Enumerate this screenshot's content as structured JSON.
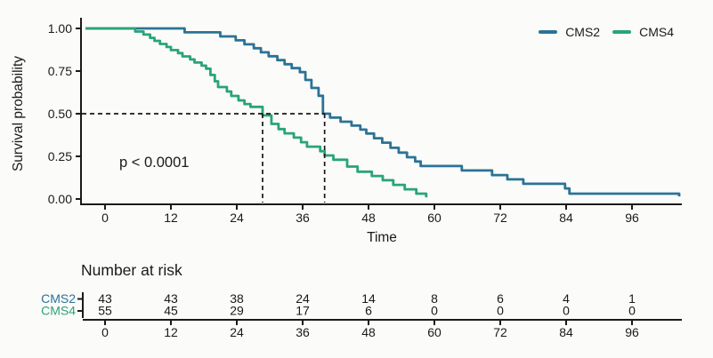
{
  "figure": {
    "background": "#fbfbf9",
    "text_color": "#1a1a1a"
  },
  "chart_data": {
    "type": "line",
    "subtype": "kaplan-meier-step",
    "title": "",
    "xlabel": "Time",
    "ylabel": "Survival probability",
    "grid": false,
    "xlim": [
      -4,
      105
    ],
    "ylim": [
      0,
      1
    ],
    "x_ticks": [
      0,
      12,
      24,
      36,
      48,
      60,
      72,
      84,
      96
    ],
    "y_ticks": [
      {
        "value": 0.0,
        "label": "0.00"
      },
      {
        "value": 0.25,
        "label": "0.25"
      },
      {
        "value": 0.5,
        "label": "0.50"
      },
      {
        "value": 0.75,
        "label": "0.75"
      },
      {
        "value": 1.0,
        "label": "1.00"
      }
    ],
    "legend": {
      "position": "top-right",
      "entries": [
        "CMS2",
        "CMS4"
      ]
    },
    "annotations": {
      "p_value": "p < 0.0001",
      "median_survival": {
        "y": 0.5,
        "times": [
          28.7,
          40
        ]
      }
    },
    "series": [
      {
        "name": "CMS2",
        "color": "#2b7396",
        "points": [
          [
            0,
            1.0
          ],
          [
            14.5,
            0.977
          ],
          [
            21,
            0.953
          ],
          [
            23.8,
            0.93
          ],
          [
            25.4,
            0.907
          ],
          [
            27.1,
            0.884
          ],
          [
            28.4,
            0.86
          ],
          [
            29.8,
            0.837
          ],
          [
            31.4,
            0.814
          ],
          [
            32.7,
            0.79
          ],
          [
            34,
            0.767
          ],
          [
            35.5,
            0.744
          ],
          [
            36.5,
            0.698
          ],
          [
            37.6,
            0.651
          ],
          [
            38.9,
            0.605
          ],
          [
            39.7,
            0.5
          ],
          [
            41,
            0.477
          ],
          [
            42.9,
            0.453
          ],
          [
            44.9,
            0.43
          ],
          [
            46.5,
            0.407
          ],
          [
            47.6,
            0.384
          ],
          [
            49,
            0.356
          ],
          [
            50.5,
            0.33
          ],
          [
            52,
            0.3
          ],
          [
            53.5,
            0.272
          ],
          [
            55,
            0.245
          ],
          [
            56.5,
            0.22
          ],
          [
            57.5,
            0.193
          ],
          [
            65,
            0.167
          ],
          [
            70.5,
            0.14
          ],
          [
            73.3,
            0.115
          ],
          [
            76.2,
            0.089
          ],
          [
            83.8,
            0.062
          ],
          [
            84.6,
            0.031
          ],
          [
            104.6,
            0.015
          ]
        ]
      },
      {
        "name": "CMS4",
        "color": "#29a478",
        "points": [
          [
            0,
            1.0
          ],
          [
            5.5,
            0.982
          ],
          [
            7,
            0.964
          ],
          [
            8.2,
            0.945
          ],
          [
            9,
            0.927
          ],
          [
            10,
            0.909
          ],
          [
            11.2,
            0.891
          ],
          [
            12,
            0.873
          ],
          [
            13.3,
            0.855
          ],
          [
            14.1,
            0.836
          ],
          [
            15.5,
            0.818
          ],
          [
            16.3,
            0.8
          ],
          [
            17.6,
            0.782
          ],
          [
            18.4,
            0.764
          ],
          [
            19.2,
            0.727
          ],
          [
            20,
            0.69
          ],
          [
            20.6,
            0.656
          ],
          [
            22.2,
            0.63
          ],
          [
            23,
            0.604
          ],
          [
            24.3,
            0.578
          ],
          [
            25.4,
            0.557
          ],
          [
            26.5,
            0.54
          ],
          [
            28.7,
            0.49
          ],
          [
            30.3,
            0.44
          ],
          [
            31.6,
            0.41
          ],
          [
            32.7,
            0.385
          ],
          [
            34.4,
            0.36
          ],
          [
            35.7,
            0.333
          ],
          [
            36.8,
            0.307
          ],
          [
            39.2,
            0.28
          ],
          [
            40,
            0.255
          ],
          [
            41.6,
            0.23
          ],
          [
            44.1,
            0.19
          ],
          [
            46,
            0.16
          ],
          [
            48.6,
            0.135
          ],
          [
            50.6,
            0.11
          ],
          [
            52.5,
            0.083
          ],
          [
            54.6,
            0.057
          ],
          [
            56.7,
            0.031
          ],
          [
            58.5,
            0.01
          ]
        ]
      }
    ],
    "risk_table": {
      "title": "Number at risk",
      "time_points": [
        0,
        12,
        24,
        36,
        48,
        60,
        72,
        84,
        96
      ],
      "rows": [
        {
          "name": "CMS2",
          "color": "#2b7396",
          "counts": [
            43,
            43,
            38,
            24,
            14,
            8,
            6,
            4,
            1
          ]
        },
        {
          "name": "CMS4",
          "color": "#29a478",
          "counts": [
            55,
            45,
            29,
            17,
            6,
            0,
            0,
            0,
            0
          ]
        }
      ]
    }
  }
}
